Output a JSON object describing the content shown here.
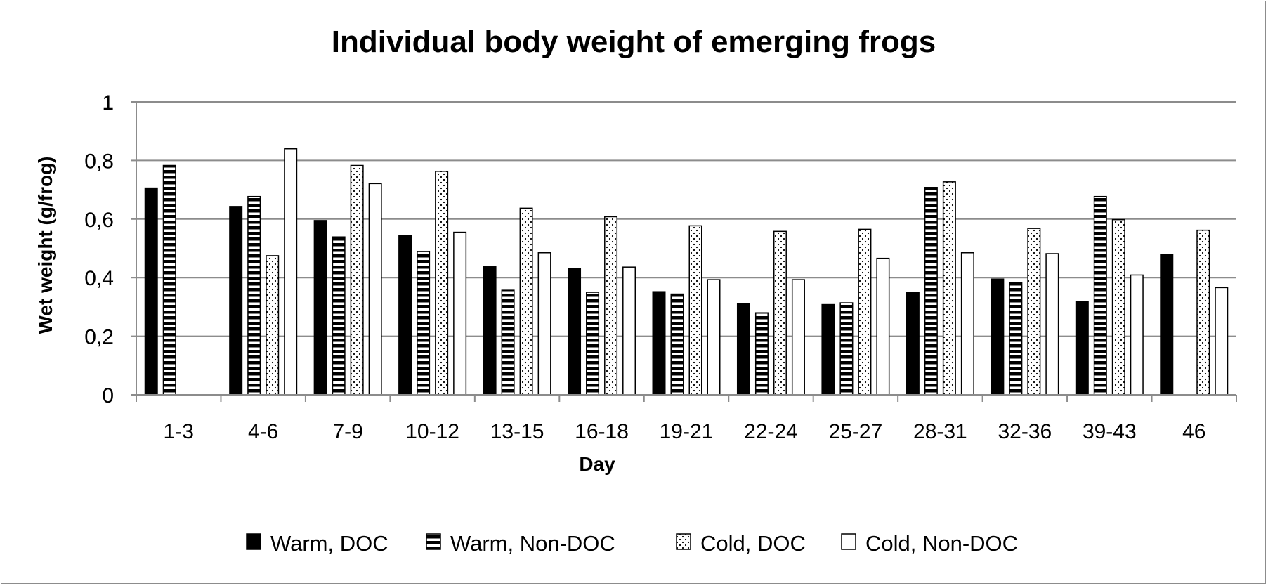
{
  "chart_data": {
    "type": "bar",
    "title": "Individual body weight of emerging frogs",
    "xlabel": "Day",
    "ylabel": "Wet weight (g/frog)",
    "ylim": [
      0,
      1
    ],
    "yticks": [
      0,
      0.2,
      0.4,
      0.6,
      0.8,
      1
    ],
    "ytick_labels": [
      "0",
      "0,2",
      "0,4",
      "0,6",
      "0,8",
      "1"
    ],
    "grid": true,
    "legend_position": "bottom",
    "categories": [
      "1-3",
      "4-6",
      "7-9",
      "10-12",
      "13-15",
      "16-18",
      "19-21",
      "22-24",
      "25-27",
      "28-31",
      "32-36",
      "39-43",
      "46"
    ],
    "series": [
      {
        "name": "Warm, DOC",
        "pattern": "solid",
        "values": [
          0.706,
          0.643,
          0.595,
          0.544,
          0.437,
          0.431,
          0.352,
          0.312,
          0.308,
          0.349,
          0.395,
          0.318,
          0.478
        ]
      },
      {
        "name": "Warm, Non-DOC",
        "pattern": "horizontal-stripes",
        "values": [
          0.783,
          0.677,
          0.539,
          0.489,
          0.357,
          0.35,
          0.344,
          0.28,
          0.314,
          0.708,
          0.382,
          0.677,
          null
        ]
      },
      {
        "name": "Cold, DOC",
        "pattern": "dots",
        "values": [
          null,
          0.475,
          0.783,
          0.763,
          0.637,
          0.608,
          0.577,
          0.558,
          0.565,
          0.727,
          0.568,
          0.598,
          0.562
        ]
      },
      {
        "name": "Cold, Non-DOC",
        "pattern": "empty",
        "values": [
          null,
          0.84,
          0.721,
          0.555,
          0.485,
          0.436,
          0.393,
          0.393,
          0.466,
          0.485,
          0.482,
          0.409,
          0.366
        ]
      }
    ]
  }
}
